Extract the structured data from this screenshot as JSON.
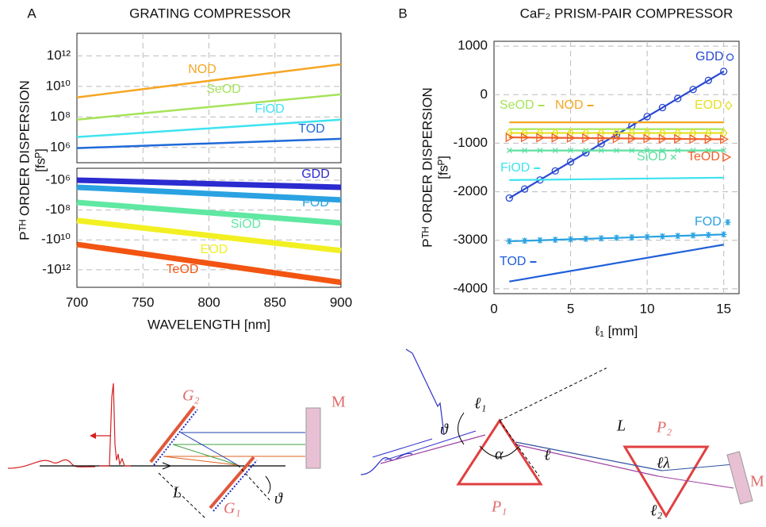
{
  "chart_data": [
    {
      "type": "line",
      "panel": "A",
      "title": "GRATING COMPRESSOR",
      "y_label": "Pᵀᴴ ORDER DISPERSION",
      "y_unit": "[fsᴾ]",
      "yscale": "log",
      "grid": true,
      "x": [
        700,
        900
      ],
      "xlim": [
        700,
        900
      ],
      "xticks": [
        700,
        750,
        800,
        850,
        900
      ],
      "ylim": [
        100000,
        30000000000000
      ],
      "yticks": [
        {
          "value": 1000000,
          "label": "10⁶"
        },
        {
          "value": 100000000,
          "label": "10⁸"
        },
        {
          "value": 10000000000,
          "label": "10¹⁰"
        },
        {
          "value": 1000000000000,
          "label": "10¹²"
        }
      ],
      "series": [
        {
          "name": "NOD",
          "color": "#f5a623",
          "values": [
            1900000000,
            280000000000
          ]
        },
        {
          "name": "SeOD",
          "color": "#a6e35a",
          "values": [
            66000000,
            3000000000
          ]
        },
        {
          "name": "FiOD",
          "color": "#3fe3f0",
          "values": [
            4800000,
            66000000
          ]
        },
        {
          "name": "TOD",
          "color": "#1f6ad8",
          "values": [
            900000,
            3700000
          ]
        }
      ]
    },
    {
      "type": "line",
      "yscale": "log",
      "grid": true,
      "x_label": "WAVELENGTH [nm]",
      "x": [
        700,
        900
      ],
      "xlim": [
        700,
        900
      ],
      "xticks": [
        700,
        750,
        800,
        850,
        900
      ],
      "ylim": [
        -15000000000000,
        -160000
      ],
      "yticks": [
        {
          "value": -1000000,
          "label": "-10⁶"
        },
        {
          "value": -100000000,
          "label": "-10⁸"
        },
        {
          "value": -10000000000,
          "label": "-10¹⁰"
        },
        {
          "value": -1000000000000,
          "label": "-10¹²"
        }
      ],
      "series": [
        {
          "name": "GDD",
          "color": "#2b2bd0",
          "values": [
            -1000000,
            -3000000
          ]
        },
        {
          "name": "FOD",
          "color": "#2aa2e2",
          "values": [
            -3000000,
            -21000000
          ]
        },
        {
          "name": "SiOD",
          "color": "#5fe8a2",
          "values": [
            -31000000,
            -740000000
          ]
        },
        {
          "name": "EOD",
          "color": "#f2f022",
          "values": [
            -500000000,
            -52000000000
          ]
        },
        {
          "name": "TeOD",
          "color": "#f25512",
          "values": [
            -20000000000,
            -7000000000000
          ]
        }
      ]
    },
    {
      "type": "line",
      "panel": "B",
      "title": "CaF₂  PRISM-PAIR COMPRESSOR",
      "y_label": "Pᵀᴴ ORDER DISPERSION",
      "y_unit": "[fsᴾ]",
      "x_label": "ℓ₁  [mm]",
      "grid": true,
      "x": [
        1,
        2,
        3,
        4,
        5,
        6,
        7,
        8,
        9,
        10,
        11,
        12,
        13,
        14,
        15
      ],
      "xlim": [
        0,
        16
      ],
      "xticks": [
        0,
        5,
        10,
        15
      ],
      "ylim": [
        -4100,
        1100
      ],
      "yticks": [
        -4000,
        -3000,
        -2000,
        -1000,
        0,
        1000
      ],
      "series": [
        {
          "name": "GDD",
          "color": "#2848d0",
          "marker": "circle",
          "values": [
            -2130,
            -1944,
            -1757,
            -1571,
            -1384,
            -1198,
            -1011,
            -825,
            -639,
            -452,
            -266,
            -79,
            107,
            294,
            480
          ]
        },
        {
          "name": "SeOD",
          "color": "#a6e35a",
          "values": [
            -710,
            -710,
            -710,
            -710,
            -710,
            -710,
            -710,
            -710,
            -710,
            -710,
            -710,
            -710,
            -710,
            -710,
            -710
          ]
        },
        {
          "name": "NOD",
          "color": "#f5a623",
          "values": [
            -570,
            -570,
            -570,
            -570,
            -570,
            -570,
            -570,
            -570,
            -570,
            -570,
            -570,
            -570,
            -570,
            -570,
            -570
          ]
        },
        {
          "name": "EOD",
          "color": "#e6e020",
          "marker": "diamond",
          "values": [
            -790,
            -790,
            -790,
            -790,
            -790,
            -790,
            -790,
            -790,
            -790,
            -790,
            -790,
            -790,
            -790,
            -790,
            -790
          ]
        },
        {
          "name": "SiOD",
          "color": "#5fe0a0",
          "marker": "x",
          "values": [
            -1150,
            -1150,
            -1150,
            -1150,
            -1150,
            -1150,
            -1150,
            -1150,
            -1150,
            -1150,
            -1150,
            -1150,
            -1150,
            -1150,
            -1150
          ]
        },
        {
          "name": "TeOD",
          "color": "#f0602a",
          "marker": "triangle",
          "values": [
            -880,
            -883,
            -886,
            -889,
            -891,
            -894,
            -897,
            -900,
            -903,
            -906,
            -909,
            -911,
            -914,
            -917,
            -920
          ]
        },
        {
          "name": "FiOD",
          "color": "#3fe3f0",
          "values": [
            -1760,
            -1756,
            -1753,
            -1749,
            -1746,
            -1742,
            -1739,
            -1735,
            -1731,
            -1728,
            -1724,
            -1721,
            -1717,
            -1714,
            -1710
          ]
        },
        {
          "name": "FOD",
          "color": "#2aa2e2",
          "marker": "star",
          "values": [
            -3020,
            -3010,
            -3000,
            -2990,
            -2980,
            -2970,
            -2960,
            -2950,
            -2940,
            -2930,
            -2920,
            -2910,
            -2900,
            -2890,
            -2880
          ]
        },
        {
          "name": "TOD",
          "color": "#1f5fd8",
          "values": [
            -3850,
            -3796,
            -3741,
            -3687,
            -3633,
            -3579,
            -3524,
            -3470,
            -3416,
            -3361,
            -3307,
            -3253,
            -3199,
            -3144,
            -3090
          ]
        }
      ]
    }
  ],
  "grating_diagram": {
    "g2": "G₂",
    "g1": "G₁",
    "mirror": "M",
    "distance": "L",
    "angle": "ϑ"
  },
  "prism_diagram": {
    "angle": "ϑ",
    "l1": "ℓ₁",
    "apex": "α",
    "l": "ℓ",
    "distance": "L",
    "p1": "P₁",
    "p2": "P₂",
    "l_lambda": "ℓλ",
    "l2": "ℓ₂",
    "mirror": "M"
  }
}
